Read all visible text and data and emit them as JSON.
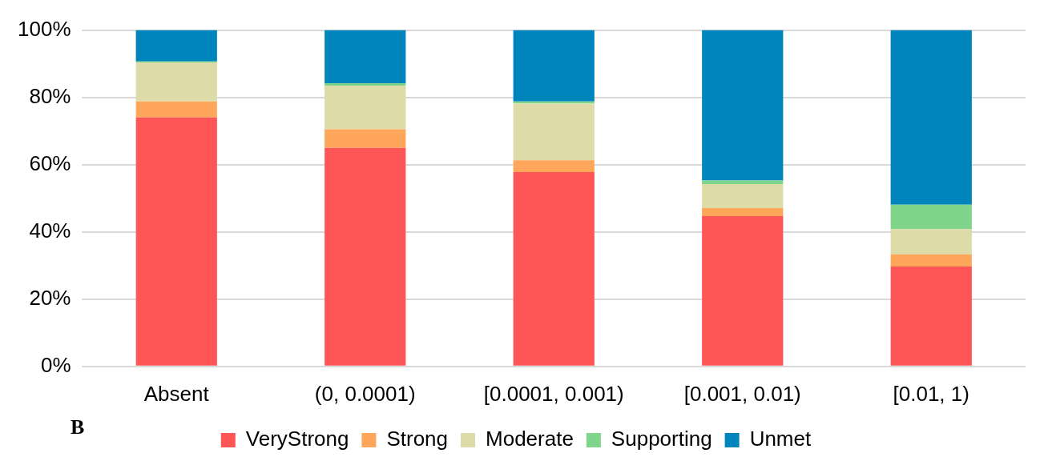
{
  "chart_data": {
    "type": "bar",
    "stacked": true,
    "categories": [
      "Absent",
      "(0, 0.0001)",
      "[0.0001, 0.001)",
      "[0.001, 0.01)",
      "[0.01, 1)"
    ],
    "series": [
      {
        "name": "VeryStrong",
        "color": "#fe5656",
        "values": [
          74,
          65,
          57.8,
          44.7,
          29.7
        ]
      },
      {
        "name": "Strong",
        "color": "#fea75a",
        "values": [
          4.8,
          5.5,
          3.5,
          2.4,
          3.6
        ]
      },
      {
        "name": "Moderate",
        "color": "#dddba7",
        "values": [
          11.6,
          13,
          16.9,
          7.1,
          7.5
        ]
      },
      {
        "name": "Supporting",
        "color": "#7ed58b",
        "values": [
          0.3,
          0.7,
          0.6,
          1.1,
          7.3
        ]
      },
      {
        "name": "Unmet",
        "color": "#0084bc",
        "values": [
          9.3,
          15.8,
          21.2,
          44.7,
          51.9
        ]
      }
    ],
    "ylim": [
      0,
      100
    ],
    "yticks": [
      {
        "value": 0,
        "label": "0%"
      },
      {
        "value": 20,
        "label": "20%"
      },
      {
        "value": 40,
        "label": "40%"
      },
      {
        "value": 60,
        "label": "60%"
      },
      {
        "value": 80,
        "label": "80%"
      },
      {
        "value": 100,
        "label": "100%"
      }
    ],
    "grid": "y",
    "legend": "bottom",
    "annotations": [
      "B"
    ]
  }
}
